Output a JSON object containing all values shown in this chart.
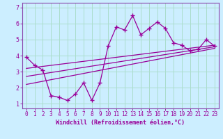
{
  "xlabel": "Windchill (Refroidissement éolien,°C)",
  "background_color": "#cceeff",
  "grid_color": "#aaddcc",
  "line_color": "#990099",
  "spine_color": "#8844aa",
  "x_data": [
    0,
    1,
    2,
    3,
    4,
    5,
    6,
    7,
    8,
    9,
    10,
    11,
    12,
    13,
    14,
    15,
    16,
    17,
    18,
    19,
    20,
    21,
    22,
    23
  ],
  "y_data": [
    3.9,
    3.4,
    3.1,
    1.5,
    1.4,
    1.2,
    1.6,
    2.3,
    1.2,
    2.3,
    4.6,
    5.8,
    5.6,
    6.5,
    5.3,
    5.7,
    6.1,
    5.7,
    4.8,
    4.65,
    4.3,
    4.4,
    5.0,
    4.6
  ],
  "reg_lines": [
    {
      "x": [
        0,
        23
      ],
      "y": [
        3.2,
        4.65
      ]
    },
    {
      "x": [
        0,
        23
      ],
      "y": [
        2.7,
        4.55
      ]
    },
    {
      "x": [
        0,
        23
      ],
      "y": [
        2.2,
        4.45
      ]
    }
  ],
  "ylim": [
    0.7,
    7.3
  ],
  "xlim": [
    -0.5,
    23.5
  ],
  "yticks": [
    1,
    2,
    3,
    4,
    5,
    6,
    7
  ],
  "xticks": [
    0,
    1,
    2,
    3,
    4,
    5,
    6,
    7,
    8,
    9,
    10,
    11,
    12,
    13,
    14,
    15,
    16,
    17,
    18,
    19,
    20,
    21,
    22,
    23
  ],
  "tick_fontsize": 5.5,
  "xlabel_fontsize": 6.0
}
